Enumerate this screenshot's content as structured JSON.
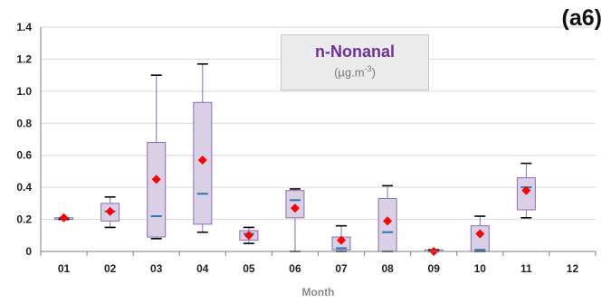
{
  "panel_label": "(a6)",
  "legend": {
    "title": "n-Nonanal",
    "unit_prefix": "(µg.m",
    "unit_exp": "-3",
    "unit_suffix": ")"
  },
  "chart_data": {
    "type": "box",
    "title": "n-Nonanal",
    "xlabel": "Month",
    "ylabel": "",
    "ylim": [
      0,
      1.4
    ],
    "yticks": [
      0,
      0.2,
      0.4,
      0.6,
      0.8,
      1.0,
      1.2,
      1.4
    ],
    "ytick_labels": [
      "0",
      "0.2",
      "0.4",
      "0.6",
      "0.8",
      "1.0",
      "1.2",
      "1.4"
    ],
    "categories": [
      "01",
      "02",
      "03",
      "04",
      "05",
      "06",
      "07",
      "08",
      "09",
      "10",
      "11",
      "12"
    ],
    "boxes": [
      {
        "month": "01",
        "min": 0.2,
        "q1": 0.2,
        "median": 0.21,
        "q3": 0.21,
        "max": 0.21,
        "mean": 0.21
      },
      {
        "month": "02",
        "min": 0.15,
        "q1": 0.19,
        "median": 0.25,
        "q3": 0.3,
        "max": 0.34,
        "mean": 0.25
      },
      {
        "month": "03",
        "min": 0.08,
        "q1": 0.09,
        "median": 0.22,
        "q3": 0.68,
        "max": 1.1,
        "mean": 0.45
      },
      {
        "month": "04",
        "min": 0.12,
        "q1": 0.17,
        "median": 0.36,
        "q3": 0.93,
        "max": 1.17,
        "mean": 0.57
      },
      {
        "month": "05",
        "min": 0.05,
        "q1": 0.07,
        "median": 0.11,
        "q3": 0.13,
        "max": 0.15,
        "mean": 0.1
      },
      {
        "month": "06",
        "min": 0.0,
        "q1": 0.21,
        "median": 0.32,
        "q3": 0.38,
        "max": 0.39,
        "mean": 0.27
      },
      {
        "month": "07",
        "min": 0.0,
        "q1": 0.01,
        "median": 0.02,
        "q3": 0.09,
        "max": 0.16,
        "mean": 0.07
      },
      {
        "month": "08",
        "min": 0.0,
        "q1": 0.0,
        "median": 0.12,
        "q3": 0.33,
        "max": 0.41,
        "mean": 0.19
      },
      {
        "month": "09",
        "min": 0.0,
        "q1": 0.0,
        "median": 0.0,
        "q3": 0.01,
        "max": 0.01,
        "mean": 0.0
      },
      {
        "month": "10",
        "min": 0.0,
        "q1": 0.0,
        "median": 0.01,
        "q3": 0.16,
        "max": 0.22,
        "mean": 0.11
      },
      {
        "month": "11",
        "min": 0.21,
        "q1": 0.26,
        "median": 0.4,
        "q3": 0.46,
        "max": 0.55,
        "mean": 0.38
      },
      {
        "month": "12",
        "min": null,
        "q1": null,
        "median": null,
        "q3": null,
        "max": null,
        "mean": null
      }
    ],
    "colors": {
      "box_fill": "#d9d0e6",
      "box_stroke": "#8e6bb4",
      "median": "#2e75b6",
      "mean": "#ff0000",
      "whisker_cap": "#000000",
      "grid": "#d9d9d9"
    },
    "grid": true
  }
}
